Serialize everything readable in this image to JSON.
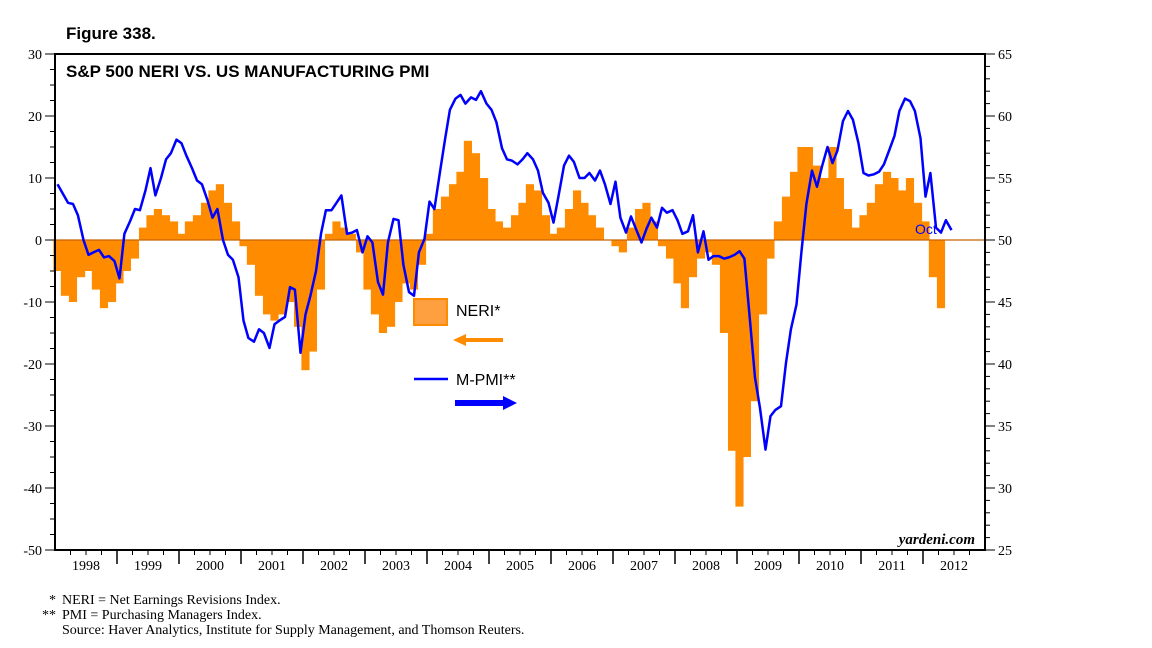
{
  "figure_label": "Figure 338.",
  "credit": "yardeni.com",
  "footnotes": [
    {
      "mark": "*",
      "text": "NERI = Net Earnings Revisions Index."
    },
    {
      "mark": "**",
      "text": "PMI = Purchasing Managers Index."
    },
    {
      "mark": "",
      "text": "Source: Haver Analytics, Institute for Supply Management, and Thomson Reuters."
    }
  ],
  "colors": {
    "neri": "#ff8c00",
    "neri_legend": "#ffa040",
    "pmi": "#0000ff",
    "zero_line": "#c86400"
  },
  "chart_data": {
    "type": "bar+line",
    "title": "S&P 500 NERI VS. US MANUFACTURING PMI",
    "x_tick_labels": [
      "1998",
      "1999",
      "2000",
      "2001",
      "2002",
      "2003",
      "2004",
      "2005",
      "2006",
      "2007",
      "2008",
      "2009",
      "2010",
      "2011",
      "2012"
    ],
    "xlim": [
      1997.96,
      2012.96
    ],
    "y_left": {
      "ylim": [
        -50,
        30
      ],
      "ticks": [
        30,
        20,
        10,
        0,
        -10,
        -20,
        -30,
        -40,
        -50
      ]
    },
    "y_right": {
      "ylim": [
        25,
        65
      ],
      "ticks": [
        65,
        60,
        55,
        50,
        45,
        40,
        35,
        30,
        25
      ]
    },
    "legend": [
      {
        "label": "NERI*",
        "axis": "left",
        "arrow": "left"
      },
      {
        "label": "M-PMI**",
        "axis": "right",
        "arrow": "right"
      }
    ],
    "annotation": "Oct",
    "grid": false,
    "series": [
      {
        "name": "NERI*",
        "axis": "left",
        "kind": "bar",
        "points": [
          [
            1998.0,
            -5
          ],
          [
            1998.12,
            -9
          ],
          [
            1998.25,
            -10
          ],
          [
            1998.38,
            -6
          ],
          [
            1998.5,
            -5
          ],
          [
            1998.62,
            -8
          ],
          [
            1998.75,
            -11
          ],
          [
            1998.88,
            -10
          ],
          [
            1999.0,
            -7
          ],
          [
            1999.12,
            -5
          ],
          [
            1999.25,
            -3
          ],
          [
            1999.38,
            2
          ],
          [
            1999.5,
            4
          ],
          [
            1999.62,
            5
          ],
          [
            1999.75,
            4
          ],
          [
            1999.88,
            3
          ],
          [
            2000.0,
            1
          ],
          [
            2000.12,
            3
          ],
          [
            2000.25,
            4
          ],
          [
            2000.38,
            6
          ],
          [
            2000.5,
            8
          ],
          [
            2000.62,
            9
          ],
          [
            2000.75,
            6
          ],
          [
            2000.88,
            3
          ],
          [
            2001.0,
            -1
          ],
          [
            2001.12,
            -4
          ],
          [
            2001.25,
            -9
          ],
          [
            2001.38,
            -12
          ],
          [
            2001.5,
            -13
          ],
          [
            2001.62,
            -12
          ],
          [
            2001.75,
            -10
          ],
          [
            2001.88,
            -14
          ],
          [
            2002.0,
            -21
          ],
          [
            2002.12,
            -18
          ],
          [
            2002.25,
            -8
          ],
          [
            2002.38,
            1
          ],
          [
            2002.5,
            3
          ],
          [
            2002.62,
            2
          ],
          [
            2002.75,
            1
          ],
          [
            2002.88,
            -2
          ],
          [
            2003.0,
            -8
          ],
          [
            2003.12,
            -12
          ],
          [
            2003.25,
            -15
          ],
          [
            2003.38,
            -14
          ],
          [
            2003.5,
            -10
          ],
          [
            2003.62,
            -7
          ],
          [
            2003.75,
            -8
          ],
          [
            2003.88,
            -4
          ],
          [
            2004.0,
            1
          ],
          [
            2004.12,
            5
          ],
          [
            2004.25,
            7
          ],
          [
            2004.38,
            9
          ],
          [
            2004.5,
            11
          ],
          [
            2004.62,
            16
          ],
          [
            2004.75,
            14
          ],
          [
            2004.88,
            10
          ],
          [
            2005.0,
            5
          ],
          [
            2005.12,
            3
          ],
          [
            2005.25,
            2
          ],
          [
            2005.38,
            4
          ],
          [
            2005.5,
            6
          ],
          [
            2005.62,
            9
          ],
          [
            2005.75,
            8
          ],
          [
            2005.88,
            4
          ],
          [
            2006.0,
            1
          ],
          [
            2006.12,
            2
          ],
          [
            2006.25,
            5
          ],
          [
            2006.38,
            8
          ],
          [
            2006.5,
            6
          ],
          [
            2006.62,
            4
          ],
          [
            2006.75,
            2
          ],
          [
            2006.88,
            0
          ],
          [
            2007.0,
            -1
          ],
          [
            2007.12,
            -2
          ],
          [
            2007.25,
            2
          ],
          [
            2007.38,
            5
          ],
          [
            2007.5,
            6
          ],
          [
            2007.62,
            3
          ],
          [
            2007.75,
            -1
          ],
          [
            2007.88,
            -3
          ],
          [
            2008.0,
            -7
          ],
          [
            2008.12,
            -11
          ],
          [
            2008.25,
            -6
          ],
          [
            2008.38,
            -3
          ],
          [
            2008.5,
            -2
          ],
          [
            2008.62,
            -4
          ],
          [
            2008.75,
            -15
          ],
          [
            2008.88,
            -34
          ],
          [
            2009.0,
            -43
          ],
          [
            2009.12,
            -35
          ],
          [
            2009.25,
            -26
          ],
          [
            2009.38,
            -12
          ],
          [
            2009.5,
            -3
          ],
          [
            2009.62,
            3
          ],
          [
            2009.75,
            7
          ],
          [
            2009.88,
            11
          ],
          [
            2010.0,
            15
          ],
          [
            2010.12,
            15
          ],
          [
            2010.25,
            12
          ],
          [
            2010.38,
            10
          ],
          [
            2010.5,
            15
          ],
          [
            2010.62,
            10
          ],
          [
            2010.75,
            5
          ],
          [
            2010.88,
            2
          ],
          [
            2011.0,
            4
          ],
          [
            2011.12,
            6
          ],
          [
            2011.25,
            9
          ],
          [
            2011.38,
            11
          ],
          [
            2011.5,
            10
          ],
          [
            2011.62,
            8
          ],
          [
            2011.75,
            10
          ],
          [
            2011.88,
            6
          ],
          [
            2012.0,
            3
          ],
          [
            2012.12,
            -6
          ],
          [
            2012.25,
            -11
          ]
        ]
      },
      {
        "name": "M-PMI**",
        "axis": "right",
        "kind": "line",
        "points": [
          [
            1998.0,
            54.5
          ],
          [
            1998.08,
            53.8
          ],
          [
            1998.17,
            53
          ],
          [
            1998.25,
            52.9
          ],
          [
            1998.33,
            52
          ],
          [
            1998.42,
            50
          ],
          [
            1998.5,
            48.8
          ],
          [
            1998.58,
            49
          ],
          [
            1998.67,
            49.2
          ],
          [
            1998.75,
            48.6
          ],
          [
            1998.83,
            48.7
          ],
          [
            1998.92,
            48.3
          ],
          [
            1999.0,
            46.9
          ],
          [
            1999.08,
            50.5
          ],
          [
            1999.17,
            51.5
          ],
          [
            1999.25,
            52.5
          ],
          [
            1999.33,
            52.4
          ],
          [
            1999.42,
            54
          ],
          [
            1999.5,
            55.8
          ],
          [
            1999.58,
            53.6
          ],
          [
            1999.67,
            55
          ],
          [
            1999.75,
            56.5
          ],
          [
            1999.83,
            57
          ],
          [
            1999.92,
            58.1
          ],
          [
            2000.0,
            57.8
          ],
          [
            2000.08,
            56.8
          ],
          [
            2000.17,
            55.8
          ],
          [
            2000.25,
            54.8
          ],
          [
            2000.33,
            54.5
          ],
          [
            2000.42,
            53.2
          ],
          [
            2000.5,
            51.8
          ],
          [
            2000.58,
            52.5
          ],
          [
            2000.67,
            50
          ],
          [
            2000.75,
            48.8
          ],
          [
            2000.83,
            48.4
          ],
          [
            2000.92,
            47
          ],
          [
            2001.0,
            43.5
          ],
          [
            2001.08,
            42.1
          ],
          [
            2001.17,
            41.8
          ],
          [
            2001.25,
            42.8
          ],
          [
            2001.33,
            42.5
          ],
          [
            2001.42,
            41.3
          ],
          [
            2001.5,
            43.2
          ],
          [
            2001.58,
            43.5
          ],
          [
            2001.67,
            43.8
          ],
          [
            2001.75,
            46.2
          ],
          [
            2001.83,
            46
          ],
          [
            2001.92,
            40.9
          ],
          [
            2002.0,
            44
          ],
          [
            2002.08,
            45.5
          ],
          [
            2002.17,
            47.5
          ],
          [
            2002.25,
            50.5
          ],
          [
            2002.33,
            52.4
          ],
          [
            2002.42,
            52.4
          ],
          [
            2002.5,
            53
          ],
          [
            2002.58,
            53.6
          ],
          [
            2002.67,
            50.5
          ],
          [
            2002.75,
            50.6
          ],
          [
            2002.83,
            50.8
          ],
          [
            2002.92,
            49
          ],
          [
            2003.0,
            50.3
          ],
          [
            2003.08,
            49.8
          ],
          [
            2003.17,
            46.6
          ],
          [
            2003.25,
            45.6
          ],
          [
            2003.33,
            49.8
          ],
          [
            2003.42,
            51.7
          ],
          [
            2003.5,
            51.6
          ],
          [
            2003.58,
            48
          ],
          [
            2003.67,
            45.8
          ],
          [
            2003.75,
            45.5
          ],
          [
            2003.83,
            49
          ],
          [
            2003.92,
            50.1
          ],
          [
            2004.0,
            53.1
          ],
          [
            2004.08,
            52.5
          ],
          [
            2004.17,
            55.5
          ],
          [
            2004.25,
            58.1
          ],
          [
            2004.33,
            60.5
          ],
          [
            2004.42,
            61.4
          ],
          [
            2004.5,
            61.7
          ],
          [
            2004.58,
            61
          ],
          [
            2004.67,
            61.5
          ],
          [
            2004.75,
            61.3
          ],
          [
            2004.83,
            62
          ],
          [
            2004.92,
            61
          ],
          [
            2005.0,
            60.5
          ],
          [
            2005.08,
            59.5
          ],
          [
            2005.17,
            57.4
          ],
          [
            2005.25,
            56.5
          ],
          [
            2005.33,
            56.4
          ],
          [
            2005.42,
            56.1
          ],
          [
            2005.5,
            56.5
          ],
          [
            2005.58,
            57
          ],
          [
            2005.67,
            56.5
          ],
          [
            2005.75,
            55.6
          ],
          [
            2005.83,
            53.8
          ],
          [
            2005.92,
            53
          ],
          [
            2006.0,
            51.4
          ],
          [
            2006.08,
            53.5
          ],
          [
            2006.17,
            56
          ],
          [
            2006.25,
            56.8
          ],
          [
            2006.33,
            56.3
          ],
          [
            2006.42,
            55
          ],
          [
            2006.5,
            55
          ],
          [
            2006.58,
            55.4
          ],
          [
            2006.67,
            54.8
          ],
          [
            2006.75,
            55.6
          ],
          [
            2006.83,
            54.5
          ],
          [
            2006.92,
            52.9
          ],
          [
            2007.0,
            54.7
          ],
          [
            2007.08,
            51.8
          ],
          [
            2007.17,
            50.6
          ],
          [
            2007.25,
            51.9
          ],
          [
            2007.33,
            50.9
          ],
          [
            2007.42,
            49.8
          ],
          [
            2007.5,
            50.9
          ],
          [
            2007.58,
            51.8
          ],
          [
            2007.67,
            51
          ],
          [
            2007.75,
            52.6
          ],
          [
            2007.83,
            52.2
          ],
          [
            2007.92,
            52.4
          ],
          [
            2008.0,
            51.6
          ],
          [
            2008.08,
            50.5
          ],
          [
            2008.17,
            50.7
          ],
          [
            2008.25,
            52
          ],
          [
            2008.33,
            49
          ],
          [
            2008.42,
            50.7
          ],
          [
            2008.5,
            48.4
          ],
          [
            2008.58,
            48.7
          ],
          [
            2008.67,
            48.7
          ],
          [
            2008.75,
            48.5
          ],
          [
            2008.83,
            48.6
          ],
          [
            2008.92,
            48.8
          ],
          [
            2009.0,
            49.1
          ],
          [
            2009.08,
            48.5
          ],
          [
            2009.17,
            43.5
          ],
          [
            2009.25,
            38.9
          ],
          [
            2009.33,
            36.5
          ],
          [
            2009.42,
            33.1
          ],
          [
            2009.5,
            35.8
          ],
          [
            2009.58,
            36.3
          ],
          [
            2009.67,
            36.6
          ],
          [
            2009.75,
            40.1
          ],
          [
            2009.83,
            42.8
          ],
          [
            2009.92,
            44.8
          ],
          [
            2010.0,
            49.1
          ],
          [
            2010.08,
            52.9
          ],
          [
            2010.17,
            55.6
          ],
          [
            2010.25,
            54.3
          ],
          [
            2010.33,
            55.9
          ],
          [
            2010.42,
            57.5
          ],
          [
            2010.5,
            56.2
          ],
          [
            2010.58,
            57.2
          ],
          [
            2010.67,
            59.6
          ],
          [
            2010.75,
            60.4
          ],
          [
            2010.83,
            59.7
          ],
          [
            2010.92,
            57.8
          ],
          [
            2011.0,
            55.4
          ],
          [
            2011.08,
            55.2
          ],
          [
            2011.17,
            55.3
          ],
          [
            2011.25,
            55.5
          ],
          [
            2011.33,
            56.1
          ],
          [
            2011.42,
            57.3
          ],
          [
            2011.5,
            58.4
          ],
          [
            2011.58,
            60.4
          ],
          [
            2011.67,
            61.4
          ],
          [
            2011.75,
            61.2
          ],
          [
            2011.83,
            60.4
          ],
          [
            2011.92,
            58.2
          ],
          [
            2012.0,
            53.5
          ],
          [
            2012.08,
            55.4
          ],
          [
            2012.17,
            51
          ],
          [
            2012.25,
            50.6
          ],
          [
            2012.33,
            51.6
          ],
          [
            2012.42,
            50.8
          ]
        ]
      }
    ]
  }
}
